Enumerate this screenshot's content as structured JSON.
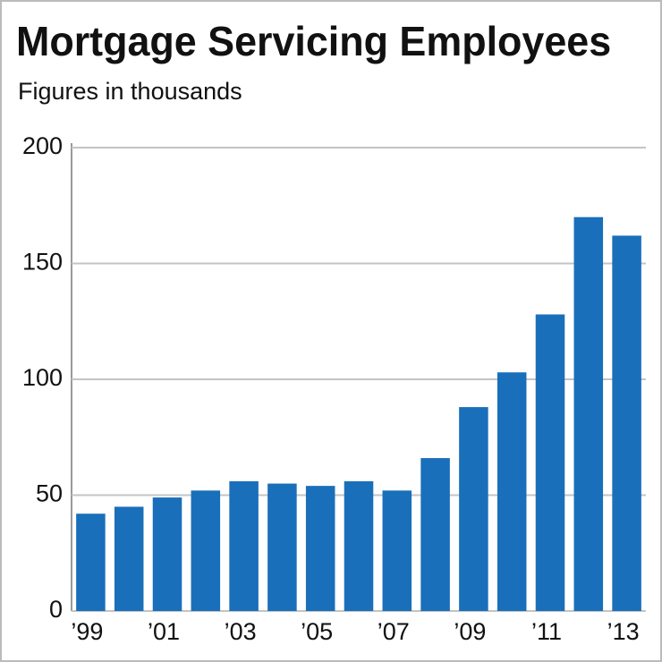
{
  "chart_data": {
    "type": "bar",
    "title": "Mortgage Servicing Employees",
    "subtitle": "Figures in thousands",
    "categories": [
      "’99",
      null,
      "’01",
      null,
      "’03",
      null,
      "’05",
      null,
      "’07",
      null,
      "’09",
      null,
      "’11",
      null,
      "’13"
    ],
    "values": [
      42,
      45,
      49,
      52,
      56,
      55,
      54,
      56,
      52,
      66,
      88,
      103,
      128,
      170,
      162
    ],
    "color": "#1a6fba",
    "ylim": [
      0,
      200
    ],
    "yticks": [
      0,
      50,
      100,
      150,
      200
    ],
    "grid": true
  }
}
